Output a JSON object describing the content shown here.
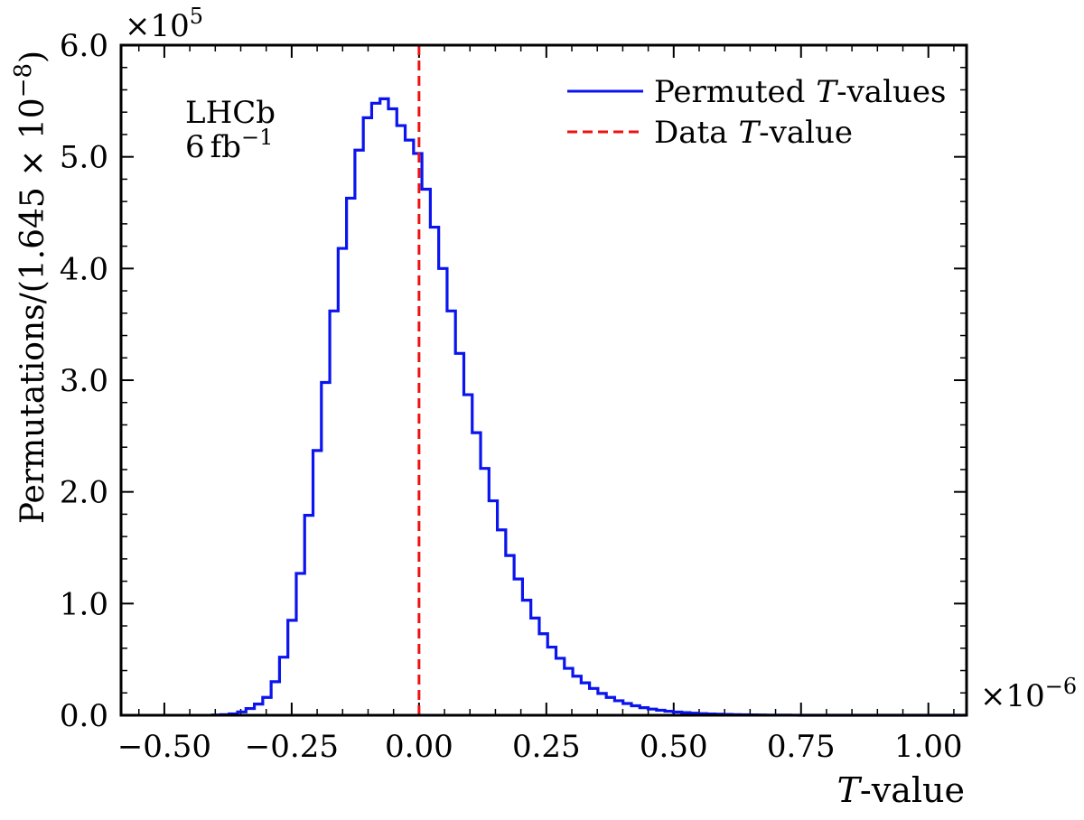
{
  "chart_data": {
    "type": "histogram",
    "title": "",
    "xlabel": {
      "var": "T",
      "suffix": "-value"
    },
    "ylabel": "Permutations/(1.645 × 10",
    "ylabel_exp": "−8",
    "ylabel_close": ")",
    "x_multiplier": {
      "base": "×10",
      "exp": "−6"
    },
    "y_multiplier": {
      "base": "×10",
      "exp": "5"
    },
    "xlim": [
      -0.585,
      1.075
    ],
    "ylim": [
      0,
      6.0
    ],
    "xticks": [
      -0.5,
      -0.25,
      0.0,
      0.25,
      0.5,
      0.75,
      1.0
    ],
    "xtick_labels": [
      "−0.50",
      "−0.25",
      "0.00",
      "0.25",
      "0.50",
      "0.75",
      "1.00"
    ],
    "yticks": [
      0,
      1,
      2,
      3,
      4,
      5,
      6
    ],
    "ytick_labels": [
      "0.0",
      "1.0",
      "2.0",
      "3.0",
      "4.0",
      "5.0",
      "6.0"
    ],
    "bin_width": 0.01645,
    "bin_start": -0.4055,
    "hist_values": [
      0.002,
      0.005,
      0.012,
      0.03,
      0.06,
      0.1,
      0.16,
      0.3,
      0.52,
      0.85,
      1.27,
      1.79,
      2.37,
      2.98,
      3.62,
      4.18,
      4.63,
      5.06,
      5.35,
      5.48,
      5.52,
      5.43,
      5.28,
      5.15,
      5.03,
      4.71,
      4.37,
      4.0,
      3.62,
      3.24,
      2.87,
      2.53,
      2.21,
      1.92,
      1.66,
      1.43,
      1.22,
      1.03,
      0.87,
      0.73,
      0.61,
      0.51,
      0.42,
      0.35,
      0.29,
      0.24,
      0.195,
      0.16,
      0.13,
      0.105,
      0.085,
      0.068,
      0.055,
      0.045,
      0.036,
      0.029,
      0.023,
      0.018,
      0.014,
      0.011,
      0.009,
      0.007,
      0.005,
      0.004,
      0.003,
      0.002,
      0.0015,
      0.001,
      0.0008,
      0.0006
    ],
    "data_value": 0.0,
    "series": [
      {
        "name": "Permuted",
        "var": "T",
        "suffix": "-values",
        "color": "#0a14ee",
        "style": "solid"
      },
      {
        "name": "Data",
        "var": "T",
        "suffix": "-value",
        "color": "#ee1111",
        "style": "dashed"
      }
    ],
    "legend_position": "top-right",
    "annotation": {
      "experiment": "LHCb",
      "lumi_value": "6",
      "lumi_unit": "fb",
      "lumi_exp": "−1"
    }
  }
}
